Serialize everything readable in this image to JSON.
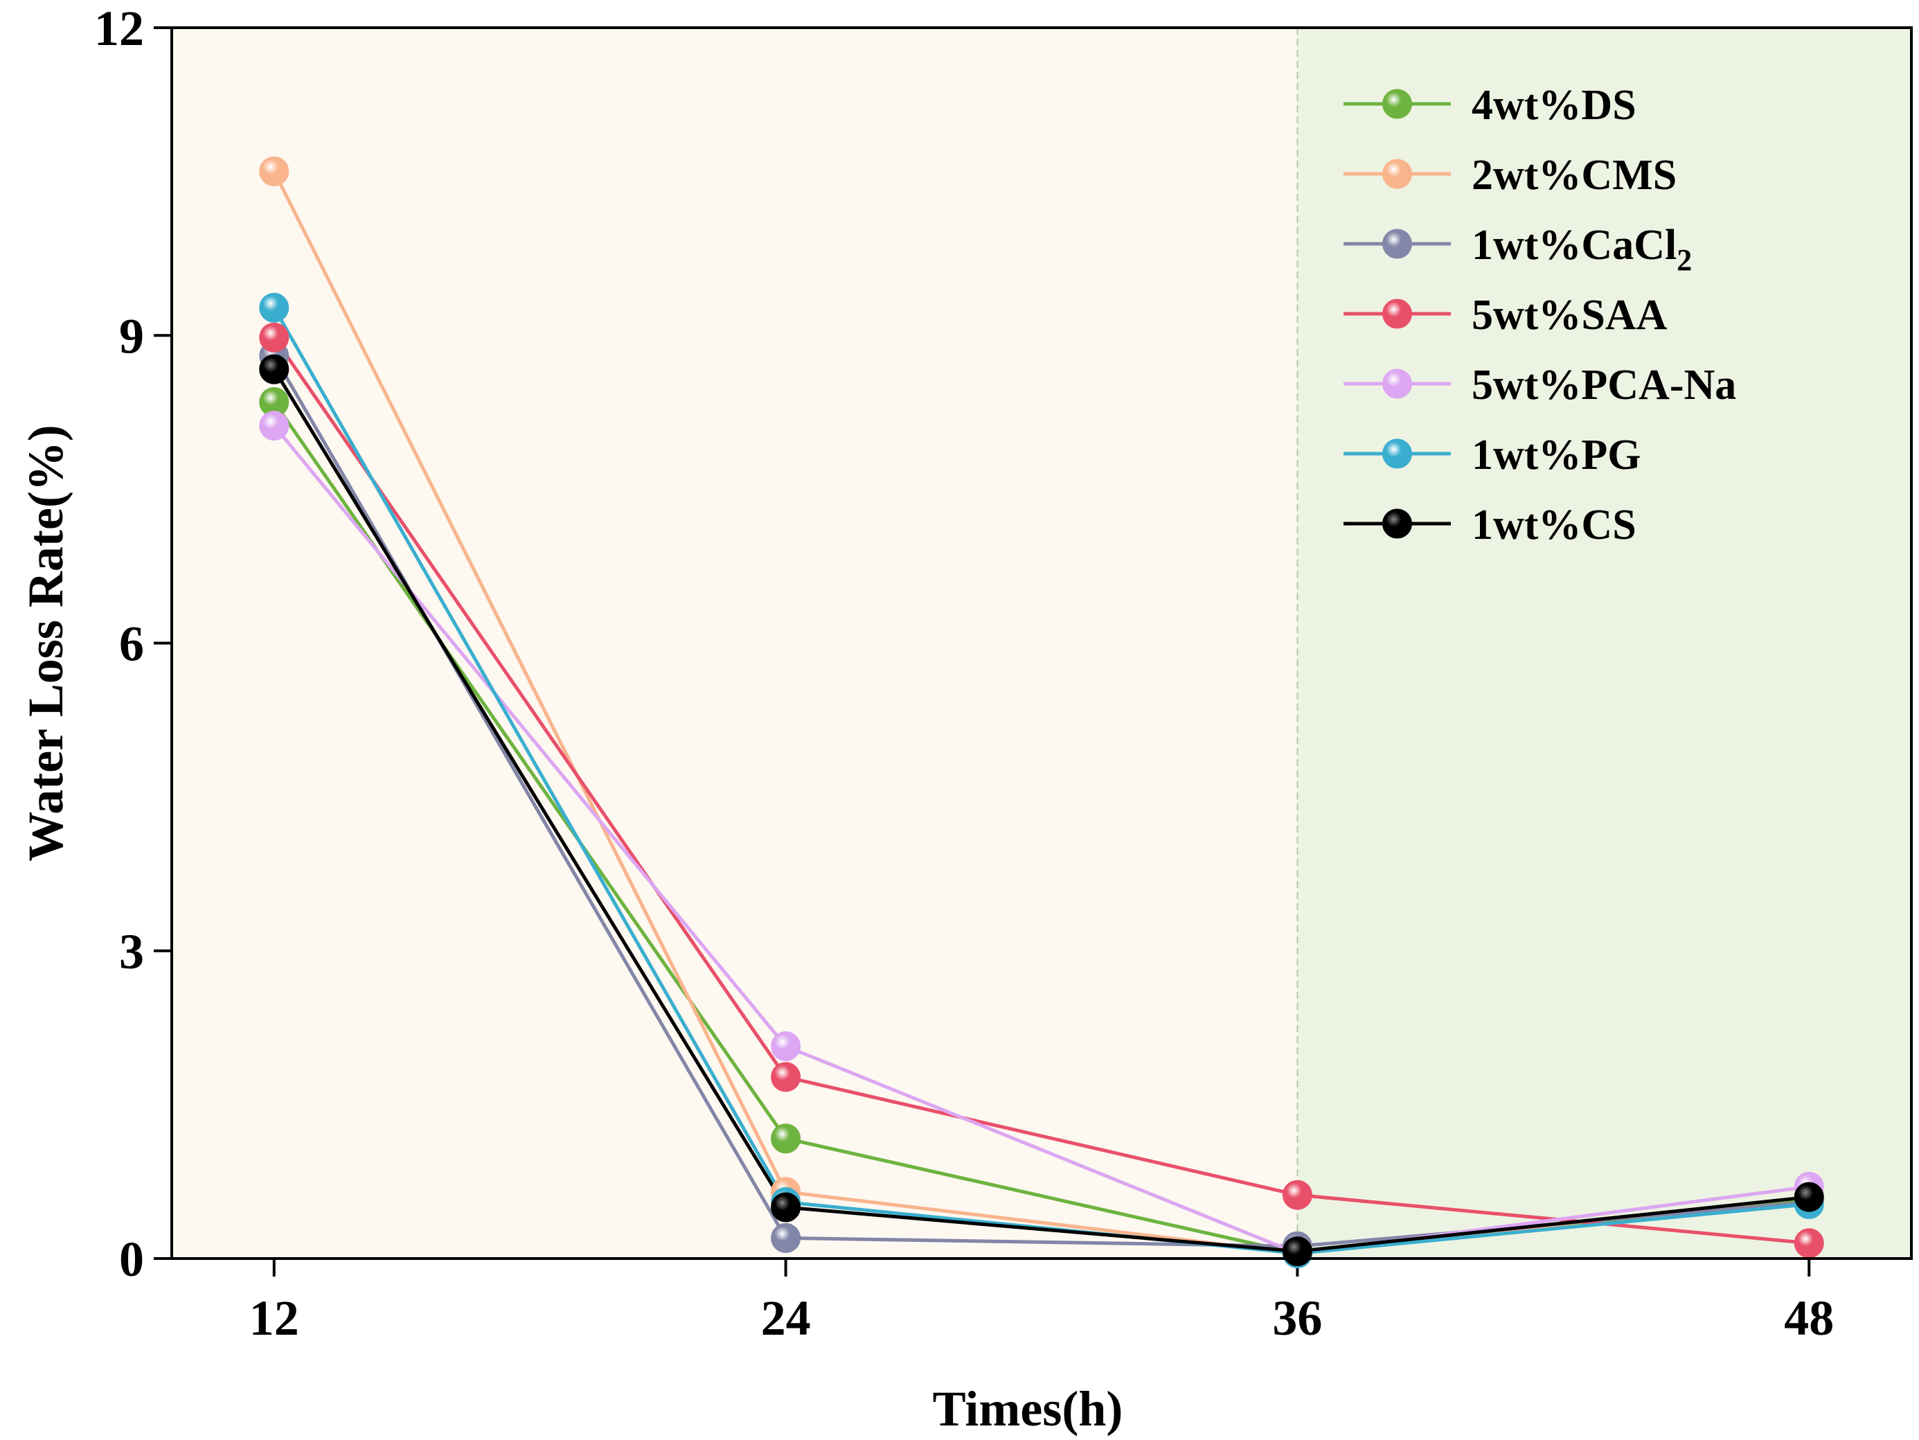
{
  "chart_data": {
    "type": "line",
    "xlabel": "Times(h)",
    "ylabel": "Water Loss Rate(%)",
    "x": [
      12,
      24,
      36,
      48
    ],
    "xlim": [
      9.6,
      50.4
    ],
    "ylim": [
      0,
      12
    ],
    "xticks": [
      "12",
      "24",
      "36",
      "48"
    ],
    "yticks": [
      "0",
      "3",
      "6",
      "9",
      "12"
    ],
    "legend_position": "top-right",
    "background_regions": [
      {
        "x_from": 9.6,
        "x_to": 36,
        "color": "#fdf8f0"
      },
      {
        "x_from": 36,
        "x_to": 50.4,
        "color": "#edf3e2"
      }
    ],
    "series": [
      {
        "name": "4wt%DS",
        "label_main": "4wt%DS",
        "label_sub": "",
        "color": "#6db33f",
        "values": [
          8.35,
          1.17,
          0.05,
          0.58
        ]
      },
      {
        "name": "2wt%CMS",
        "label_main": "2wt%CMS",
        "label_sub": "",
        "color": "#f9b48c",
        "values": [
          10.6,
          0.65,
          0.05,
          0.6
        ]
      },
      {
        "name": "1wt%CaCl2",
        "label_main": "1wt%CaCl",
        "label_sub": "2",
        "color": "#8286a8",
        "values": [
          8.8,
          0.2,
          0.12,
          0.55
        ]
      },
      {
        "name": "5wt%SAA",
        "label_main": "5wt%SAA",
        "label_sub": "",
        "color": "#e8506a",
        "values": [
          8.98,
          1.77,
          0.62,
          0.15
        ]
      },
      {
        "name": "5wt%PCA-Na",
        "label_main": "5wt%PCA-Na",
        "label_sub": "",
        "color": "#dca6f2",
        "values": [
          8.12,
          2.07,
          0.05,
          0.7
        ]
      },
      {
        "name": "1wt%PG",
        "label_main": "1wt%PG",
        "label_sub": "",
        "color": "#3aaecf",
        "values": [
          9.27,
          0.55,
          0.05,
          0.53
        ]
      },
      {
        "name": "1wt%CS",
        "label_main": "1wt%CS",
        "label_sub": "",
        "color": "#000000",
        "values": [
          8.67,
          0.5,
          0.07,
          0.6
        ]
      }
    ]
  }
}
